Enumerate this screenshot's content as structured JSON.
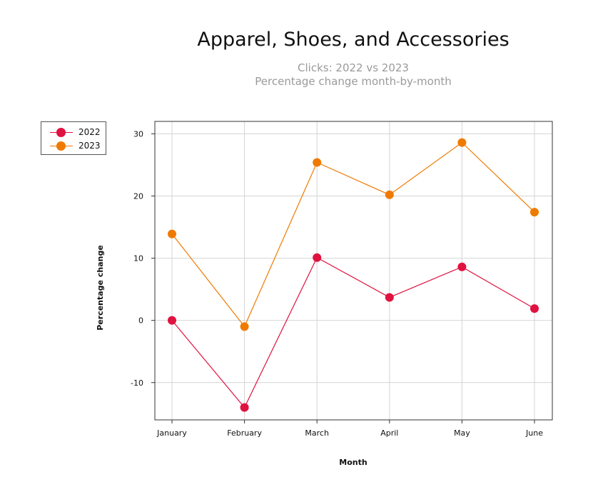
{
  "chart_data": {
    "type": "line",
    "title": "Apparel, Shoes, and Accessories",
    "subtitle": [
      "Clicks: 2022 vs 2023",
      "Percentage change month-by-month"
    ],
    "xlabel": "Month",
    "ylabel": "Percentage change",
    "categories": [
      "January",
      "February",
      "March",
      "April",
      "May",
      "June"
    ],
    "ylim": [
      -16,
      32
    ],
    "yticks": [
      30,
      20,
      10,
      0,
      -10
    ],
    "grid": true,
    "legend_position": "top-left, outside plot",
    "series": [
      {
        "name": "2022",
        "color": "#e0123f",
        "values": [
          0,
          -14,
          10.1,
          3.7,
          8.6,
          1.9
        ]
      },
      {
        "name": "2023",
        "color": "#ef7a00",
        "values": [
          13.9,
          -1,
          25.4,
          20.2,
          28.6,
          17.4
        ]
      }
    ]
  }
}
